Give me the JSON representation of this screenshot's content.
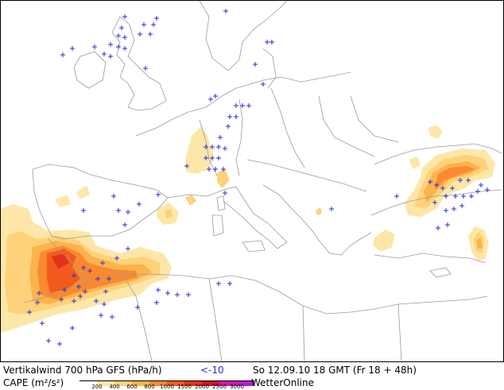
{
  "header": {
    "title": "Vertikalwind 700 hPa GFS (hPa/h)",
    "threshold": "<-10",
    "datetime": "So 12.09.10 18 GMT (Fr 18 + 48h)"
  },
  "legend": {
    "label": "CAPE (m²/s²)",
    "ticks": [
      "200",
      "400",
      "600",
      "800",
      "1000",
      "1500",
      "2000",
      "2500",
      "3000"
    ],
    "colors": [
      "#ffffff",
      "#fde7a8",
      "#fdd27a",
      "#fcb34b",
      "#f98a2f",
      "#f25a1f",
      "#e3321c",
      "#c9172b",
      "#d21ba8",
      "#b21fd0"
    ],
    "brand": "WetterOnline"
  },
  "colors": {
    "coastline": "#9a9a9a",
    "plus_marker": "#2a2ad8"
  }
}
